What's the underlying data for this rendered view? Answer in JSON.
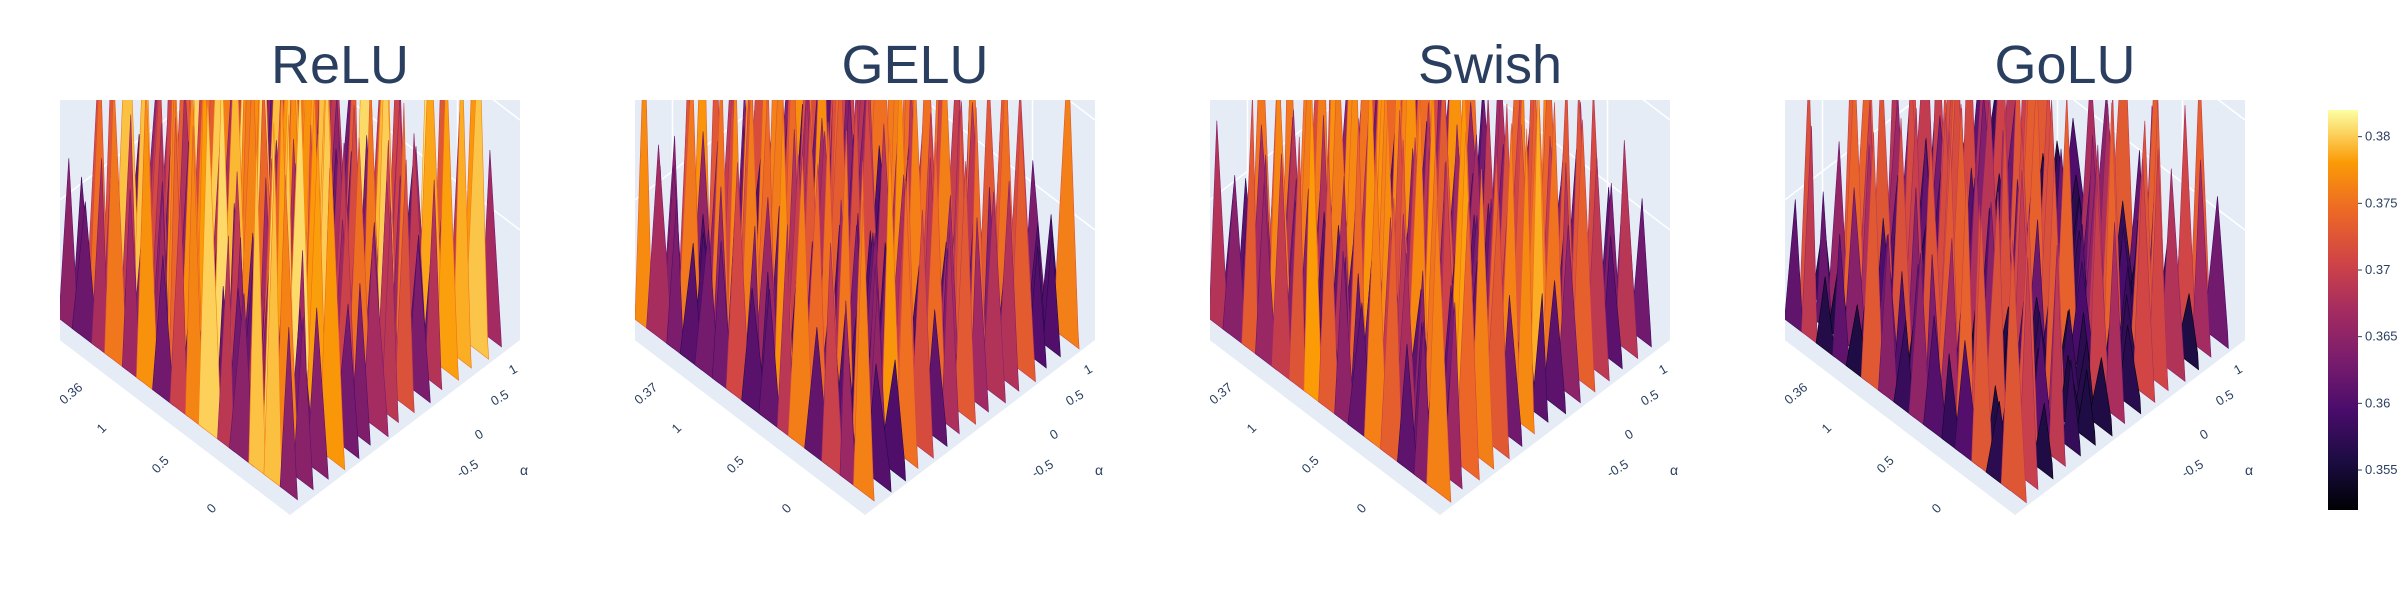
{
  "chart_data": [
    {
      "type": "surface",
      "title": "ReLU",
      "z_tick_labels": [
        "0.36"
      ],
      "x_tick_labels": [
        "1",
        "0.5",
        "0"
      ],
      "y_tick_labels": [
        "1",
        "0.5",
        "0",
        "-0.5"
      ],
      "yaxis_title": "α",
      "z_range": [
        0.352,
        0.382
      ],
      "surface_intensity": {
        "mean": 0.362,
        "spike_max": 0.381
      }
    },
    {
      "type": "surface",
      "title": "GELU",
      "z_tick_labels": [
        "0.37"
      ],
      "x_tick_labels": [
        "1",
        "0.5",
        "0"
      ],
      "y_tick_labels": [
        "1",
        "0.5",
        "0",
        "-0.5"
      ],
      "yaxis_title": "α",
      "z_range": [
        0.352,
        0.382
      ],
      "surface_intensity": {
        "mean": 0.36,
        "spike_max": 0.378
      }
    },
    {
      "type": "surface",
      "title": "Swish",
      "z_tick_labels": [
        "0.37"
      ],
      "x_tick_labels": [
        "1",
        "0.5",
        "0"
      ],
      "y_tick_labels": [
        "1",
        "0.5",
        "0",
        "-0.5"
      ],
      "yaxis_title": "α",
      "z_range": [
        0.352,
        0.382
      ],
      "surface_intensity": {
        "mean": 0.361,
        "spike_max": 0.379
      }
    },
    {
      "type": "surface",
      "title": "GoLU",
      "z_tick_labels": [
        "0.36"
      ],
      "x_tick_labels": [
        "1",
        "0.5",
        "0"
      ],
      "y_tick_labels": [
        "1",
        "0.5",
        "0",
        "-0.5"
      ],
      "yaxis_title": "α",
      "z_range": [
        0.352,
        0.382
      ],
      "surface_intensity": {
        "mean": 0.356,
        "spike_max": 0.374
      }
    }
  ],
  "colorbar": {
    "colorscale": "inferno",
    "range": [
      0.352,
      0.382
    ],
    "ticks": [
      0.355,
      0.36,
      0.365,
      0.37,
      0.375,
      0.38
    ],
    "tick_labels": [
      "0.355",
      "0.36",
      "0.365",
      "0.37",
      "0.375",
      "0.38"
    ]
  },
  "colors": {
    "scene_background": "#e5ecf6",
    "grid": "#ffffff",
    "text": "#2a3f5f"
  }
}
